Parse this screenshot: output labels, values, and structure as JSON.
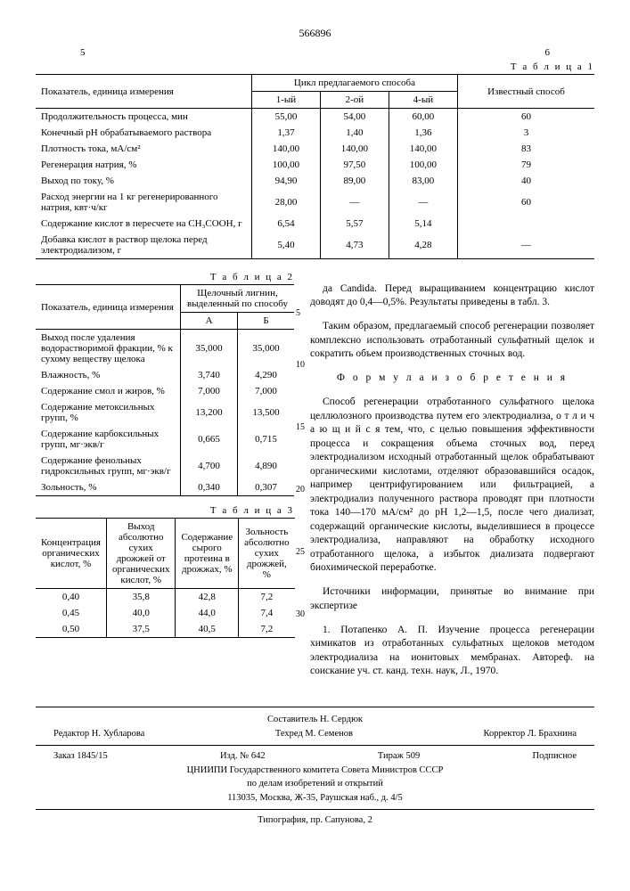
{
  "patent_number": "566896",
  "page_left": "5",
  "page_right": "6",
  "table1": {
    "label": "Т а б л и ц а 1",
    "header_indicator": "Показатель,\nединица измерения",
    "header_cycle": "Цикл предлагаемого способа",
    "header_known": "Известный способ",
    "cycle_cols": [
      "1-ый",
      "2-ой",
      "4-ый"
    ],
    "rows": [
      {
        "label": "Продолжительность процесса, мин",
        "v": [
          "55,00",
          "54,00",
          "60,00",
          "60"
        ]
      },
      {
        "label": "Конечный pH обрабатываемого раствора",
        "v": [
          "1,37",
          "1,40",
          "1,36",
          "3"
        ]
      },
      {
        "label": "Плотность тока, мА/см²",
        "v": [
          "140,00",
          "140,00",
          "140,00",
          "83"
        ]
      },
      {
        "label": "Регенерация натрия, %",
        "v": [
          "100,00",
          "97,50",
          "100,00",
          "79"
        ]
      },
      {
        "label": "Выход по току, %",
        "v": [
          "94,90",
          "89,00",
          "83,00",
          "40"
        ]
      },
      {
        "label": "Расход энергии на 1 кг регенерированного натрия, квт·ч/кг",
        "v": [
          "28,00",
          "—",
          "—",
          "60"
        ]
      },
      {
        "label": "Содержание кислот в пересчете на CH₃COOH, г",
        "v": [
          "6,54",
          "5,57",
          "5,14",
          ""
        ]
      },
      {
        "label": "Добавка кислот в раствор щелока перед электродиализом, г",
        "v": [
          "5,40",
          "4,73",
          "4,28",
          "—"
        ]
      }
    ]
  },
  "table2": {
    "label": "Т а б л и ц а 2",
    "header_indicator": "Показатель,\nединица измерения",
    "header_group": "Щелочный лигнин, выделенный по способу",
    "cols": [
      "А",
      "Б"
    ],
    "rows": [
      {
        "label": "Выход после удаления водорастворимой фракции, % к сухому веществу щелока",
        "v": [
          "35,000",
          "35,000"
        ]
      },
      {
        "label": "Влажность, %",
        "v": [
          "3,740",
          "4,290"
        ]
      },
      {
        "label": "Содержание смол и жиров, %",
        "v": [
          "7,000",
          "7,000"
        ]
      },
      {
        "label": "Содержание метоксильных групп, %",
        "v": [
          "13,200",
          "13,500"
        ]
      },
      {
        "label": "Содержание карбоксильных групп, мг·экв/г",
        "v": [
          "0,665",
          "0,715"
        ]
      },
      {
        "label": "Содержание фенольных гидроксильных групп, мг·экв/г",
        "v": [
          "4,700",
          "4,890"
        ]
      },
      {
        "label": "Зольность, %",
        "v": [
          "0,340",
          "0,307"
        ]
      }
    ]
  },
  "table3": {
    "label": "Т а б л и ц а 3",
    "headers": [
      "Концентрация органических кислот, %",
      "Выход абсолютно сухих дрожжей от органических кислот, %",
      "Содержание сырого протеина в дрожжах, %",
      "Зольность абсолютно сухих дрожжей, %"
    ],
    "rows": [
      [
        "0,40",
        "35,8",
        "42,8",
        "7,2"
      ],
      [
        "0,45",
        "40,0",
        "44,0",
        "7,4"
      ],
      [
        "0,50",
        "37,5",
        "40,5",
        "7,2"
      ]
    ]
  },
  "text": {
    "p1": "да Candida. Перед выращиванием концентрацию кислот доводят до 0,4—0,5%. Результаты приведены в табл. 3.",
    "p2": "Таким образом, предлагаемый способ регенерации позволяет комплексно использовать отработанный сульфатный щелок и сократить объем производственных сточных вод.",
    "formula_title": "Ф о р м у л а  и з о б р е т е н и я",
    "p3": "Способ регенерации отработанного сульфатного щелока целлюлозного производства путем его электродиализа, о т л и ч а ю щ и й с я тем, что, с целью повышения эффективности процесса и сокращения объема сточных вод, перед электродиализом исходный отработанный щелок обрабатывают органическими кислотами, отделяют образовавшийся осадок, например центрифугированием или фильтрацией, а электродиализ полученного раствора проводят при плотности тока 140—170 мА/см² до pH 1,2—1,5, после чего диализат, содержащий органические кислоты, выделившиеся в процессе электродиализа, направляют на обработку исходного отработанного щелока, а избыток диализата подвергают биохимической переработке.",
    "p4": "Источники информации, принятые во внимание при экспертизе",
    "p5": "1. Потапенко А. П. Изучение процесса регенерации химикатов из отработанных сульфатных щелоков методом электродиализа на ионитовых мембранах. Автореф. на соискание уч. ст. канд. техн. наук, Л., 1970."
  },
  "line_numbers": [
    "5",
    "10",
    "15",
    "20",
    "25",
    "30"
  ],
  "footer": {
    "composer": "Составитель Н. Сердюк",
    "editor": "Редактор Н. Хубларова",
    "tech": "Техред М. Семенов",
    "corrector": "Корректор Л. Брахнина",
    "order": "Заказ 1845/15",
    "izd": "Изд. № 642",
    "tirazh": "Тираж 509",
    "sub": "Подписное",
    "org1": "ЦНИИПИ Государственного комитета Совета Министров СССР",
    "org2": "по делам изобретений и открытий",
    "addr": "113035, Москва, Ж-35, Раушская наб., д. 4/5",
    "print": "Типография, пр. Сапунова, 2"
  }
}
